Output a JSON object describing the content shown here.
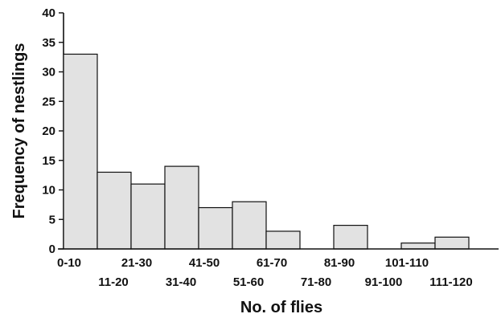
{
  "chart_data": {
    "type": "bar",
    "title": "",
    "xlabel": "No. of flies",
    "ylabel": "Frequency of nestlings",
    "ylim": [
      0,
      40
    ],
    "yticks": [
      0,
      5,
      10,
      15,
      20,
      25,
      30,
      35,
      40
    ],
    "categories": [
      "0-10",
      "11-20",
      "21-30",
      "31-40",
      "41-50",
      "51-60",
      "61-70",
      "71-80",
      "81-90",
      "91-100",
      "101-110",
      "111-120"
    ],
    "values": [
      33,
      13,
      11,
      14,
      7,
      8,
      3,
      0,
      4,
      0,
      1,
      2
    ],
    "grid": false,
    "colors": {
      "bar_fill": "#e2e2e2",
      "bar_stroke": "#111111"
    }
  }
}
